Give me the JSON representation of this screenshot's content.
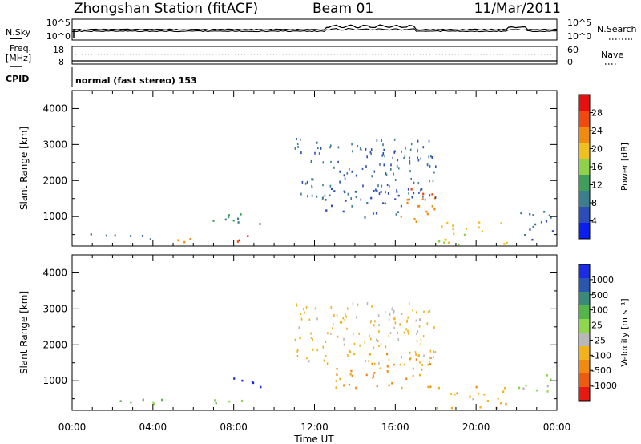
{
  "header": {
    "station": "Zhongshan Station (fitACF)",
    "beam": "Beam 01",
    "date": "11/Mar/2011",
    "mode": "normal (fast stereo) 153"
  },
  "strip_labels": {
    "nsky": "N.Sky",
    "nsearch": "N.Search",
    "freq_top": "Freq.",
    "freq_unit": "[MHz]",
    "cpid": "CPID",
    "nave": "Nave",
    "nsky_ticks": [
      "10^5",
      "10^0"
    ],
    "nsearch_ticks": [
      "10^5",
      "10^0"
    ],
    "freq_ticks": [
      "18",
      "8"
    ],
    "nave_ticks": [
      "60",
      "0"
    ]
  },
  "x_axis": {
    "label": "Time UT",
    "ticks": [
      "00:00",
      "04:00",
      "08:00",
      "12:00",
      "16:00",
      "20:00",
      "00:00"
    ]
  },
  "colors": {
    "power_scale": [
      "#0a1ef0",
      "#2c4db8",
      "#3d7e8c",
      "#3f9e5a",
      "#8fd24a",
      "#f0c020",
      "#f08a10",
      "#f04a10",
      "#e61010"
    ],
    "velocity_scale": [
      "#1a2ce6",
      "#2b56b0",
      "#3a8a7c",
      "#53b54a",
      "#8fd84c",
      "#b8b8b8",
      "#f2b21a",
      "#f28a10",
      "#ee5a10",
      "#e61a10"
    ]
  },
  "chart_data": [
    {
      "type": "heatmap",
      "panel": "power",
      "xlabel": "Time UT",
      "ylabel": "Slant Range [km]",
      "xlim": [
        0,
        24
      ],
      "ylim": [
        180,
        4500
      ],
      "yticks": [
        "1000",
        "2000",
        "3000",
        "4000"
      ],
      "colorbar": {
        "label": "Power [dB]",
        "ticks": [
          "28",
          "24",
          "20",
          "16",
          "12",
          "8",
          "4"
        ],
        "range": [
          0,
          30
        ]
      },
      "regions": [
        {
          "t0": 0.9,
          "t1": 4.5,
          "r0": 350,
          "r1": 550,
          "value": 8
        },
        {
          "t0": 3.5,
          "t1": 6.0,
          "r0": 300,
          "r1": 450,
          "value": 20
        },
        {
          "t0": 7.5,
          "t1": 9.5,
          "r0": 300,
          "r1": 500,
          "value": 26
        },
        {
          "t0": 6.8,
          "t1": 9.5,
          "r0": 800,
          "r1": 1200,
          "value": 10
        },
        {
          "t0": 12.5,
          "t1": 16.5,
          "r0": 1000,
          "r1": 1800,
          "value": 6
        },
        {
          "t0": 16.2,
          "t1": 18.0,
          "r0": 700,
          "r1": 1800,
          "value": 22
        },
        {
          "t0": 18.0,
          "t1": 21.5,
          "r0": 250,
          "r1": 900,
          "value": 18
        },
        {
          "t0": 22.0,
          "t1": 23.8,
          "r0": 300,
          "r1": 1200,
          "value": 6
        }
      ]
    },
    {
      "type": "heatmap",
      "panel": "velocity",
      "xlabel": "Time UT",
      "ylabel": "Slant Range [km]",
      "xlim": [
        0,
        24
      ],
      "ylim": [
        180,
        4500
      ],
      "yticks": [
        "1000",
        "2000",
        "3000",
        "4000"
      ],
      "colorbar": {
        "label": "Velocity [m s⁻¹]",
        "ticks": [
          "1000",
          "500",
          "100",
          "25",
          "-25",
          "-100",
          "-500",
          "-1000"
        ],
        "range": [
          -1000,
          1000
        ]
      },
      "regions": [
        {
          "t0": 0.9,
          "t1": 4.5,
          "r0": 350,
          "r1": 550,
          "value": 200
        },
        {
          "t0": 7.5,
          "t1": 9.5,
          "r0": 800,
          "r1": 1100,
          "value": 1000
        },
        {
          "t0": 7.0,
          "t1": 9.5,
          "r0": 300,
          "r1": 500,
          "value": 100
        },
        {
          "t0": 13.0,
          "t1": 18.0,
          "r0": 800,
          "r1": 1800,
          "value": -400
        },
        {
          "t0": 18.0,
          "t1": 21.5,
          "r0": 250,
          "r1": 900,
          "value": -300
        },
        {
          "t0": 22.0,
          "t1": 23.8,
          "r0": 700,
          "r1": 1200,
          "value": 0
        }
      ]
    }
  ]
}
